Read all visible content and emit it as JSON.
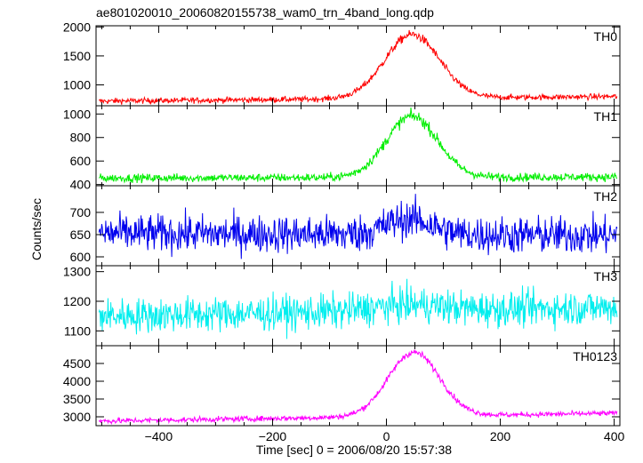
{
  "chart_data": {
    "type": "line",
    "title": "ae801020010_20060820155738_wam0_trn_4band_long.qdp",
    "xlabel": "Time [sec] 0 = 2006/08/20 15:57:38",
    "ylabel": "Counts/sec",
    "xlim": [
      -510,
      410
    ],
    "x_ticks": [
      -400,
      -200,
      0,
      200,
      400
    ],
    "x_tick_labels": [
      "−400",
      "−200",
      "0",
      "200",
      "400"
    ],
    "grid": false,
    "panels": [
      {
        "name": "TH0",
        "color": "#ff0000",
        "ylim": [
          640,
          2020
        ],
        "y_ticks": [
          1000,
          1500,
          2000
        ],
        "y_tick_labels": [
          "1000",
          "1500",
          "2000"
        ],
        "baseline_start": 720,
        "baseline_end": 800,
        "noise": 35,
        "peak": {
          "x": 45,
          "amplitude": 1100,
          "width": 48
        }
      },
      {
        "name": "TH1",
        "color": "#00ee00",
        "ylim": [
          390,
          1070
        ],
        "y_ticks": [
          400,
          600,
          800,
          1000
        ],
        "y_tick_labels": [
          "400",
          "600",
          "800",
          "1000"
        ],
        "baseline_start": 455,
        "baseline_end": 465,
        "noise": 25,
        "peak": {
          "x": 45,
          "amplitude": 520,
          "width": 45
        }
      },
      {
        "name": "TH2",
        "color": "#0000ee",
        "ylim": [
          580,
          760
        ],
        "y_ticks": [
          600,
          650,
          700
        ],
        "y_tick_labels": [
          "600",
          "650",
          "700"
        ],
        "baseline_start": 653,
        "baseline_end": 648,
        "noise": 30,
        "peak": {
          "x": 40,
          "amplitude": 35,
          "width": 40
        }
      },
      {
        "name": "TH3",
        "color": "#00eeee",
        "ylim": [
          1050,
          1320
        ],
        "y_ticks": [
          1100,
          1200,
          1300
        ],
        "y_tick_labels": [
          "1100",
          "1200",
          "1300"
        ],
        "baseline_start": 1150,
        "baseline_end": 1180,
        "noise": 42,
        "peak": {
          "x": 40,
          "amplitude": 20,
          "width": 60
        }
      },
      {
        "name": "TH0123",
        "color": "#ff00ff",
        "ylim": [
          2750,
          5000
        ],
        "y_ticks": [
          3000,
          3500,
          4000,
          4500
        ],
        "y_tick_labels": [
          "3000",
          "3500",
          "4000",
          "4500"
        ],
        "baseline_start": 2880,
        "baseline_end": 3100,
        "noise": 55,
        "peak": {
          "x": 48,
          "amplitude": 1800,
          "width": 45
        }
      }
    ]
  }
}
